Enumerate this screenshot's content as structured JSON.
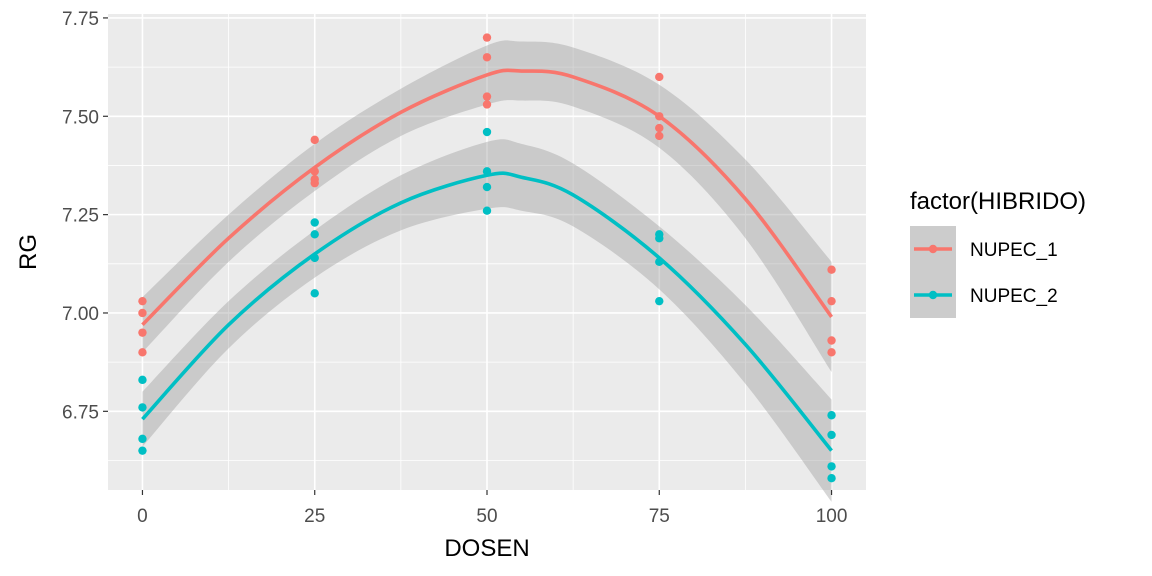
{
  "chart_data": {
    "type": "scatter",
    "xlabel": "DOSEN",
    "ylabel": "RG",
    "xlim": [
      -5,
      105
    ],
    "ylim": [
      6.55,
      7.76
    ],
    "xticks": [
      0,
      25,
      50,
      75,
      100
    ],
    "xtick_labels": [
      "0",
      "25",
      "50",
      "75",
      "100"
    ],
    "yticks": [
      6.75,
      7.0,
      7.25,
      7.5,
      7.75
    ],
    "ytick_labels": [
      "6.75",
      "7.00",
      "7.25",
      "7.50",
      "7.75"
    ],
    "grid": true,
    "legend": {
      "title": "factor(HIBRIDO)",
      "placement": "right"
    },
    "series": [
      {
        "name": "NUPEC_1",
        "color": "#F8766D",
        "points": [
          {
            "x": 0,
            "y": 7.03
          },
          {
            "x": 0,
            "y": 7.0
          },
          {
            "x": 0,
            "y": 6.95
          },
          {
            "x": 0,
            "y": 6.9
          },
          {
            "x": 25,
            "y": 7.44
          },
          {
            "x": 25,
            "y": 7.36
          },
          {
            "x": 25,
            "y": 7.34
          },
          {
            "x": 25,
            "y": 7.33
          },
          {
            "x": 50,
            "y": 7.7
          },
          {
            "x": 50,
            "y": 7.65
          },
          {
            "x": 50,
            "y": 7.55
          },
          {
            "x": 50,
            "y": 7.53
          },
          {
            "x": 75,
            "y": 7.6
          },
          {
            "x": 75,
            "y": 7.5
          },
          {
            "x": 75,
            "y": 7.47
          },
          {
            "x": 75,
            "y": 7.45
          },
          {
            "x": 100,
            "y": 7.11
          },
          {
            "x": 100,
            "y": 7.03
          },
          {
            "x": 100,
            "y": 6.93
          },
          {
            "x": 100,
            "y": 6.9
          }
        ],
        "fit": [
          {
            "x": 0,
            "y": 6.97
          },
          {
            "x": 12.5,
            "y": 7.19
          },
          {
            "x": 25,
            "y": 7.37
          },
          {
            "x": 37.5,
            "y": 7.51
          },
          {
            "x": 50,
            "y": 7.605
          },
          {
            "x": 55,
            "y": 7.615
          },
          {
            "x": 62.5,
            "y": 7.6
          },
          {
            "x": 75,
            "y": 7.5
          },
          {
            "x": 87.5,
            "y": 7.29
          },
          {
            "x": 100,
            "y": 6.99
          }
        ],
        "ci_halfwidth": [
          0.07,
          0.06,
          0.06,
          0.06,
          0.075,
          0.075,
          0.075,
          0.08,
          0.1,
          0.14
        ]
      },
      {
        "name": "NUPEC_2",
        "color": "#00BFC4",
        "points": [
          {
            "x": 0,
            "y": 6.83
          },
          {
            "x": 0,
            "y": 6.76
          },
          {
            "x": 0,
            "y": 6.68
          },
          {
            "x": 0,
            "y": 6.65
          },
          {
            "x": 25,
            "y": 7.23
          },
          {
            "x": 25,
            "y": 7.2
          },
          {
            "x": 25,
            "y": 7.14
          },
          {
            "x": 25,
            "y": 7.05
          },
          {
            "x": 50,
            "y": 7.46
          },
          {
            "x": 50,
            "y": 7.36
          },
          {
            "x": 50,
            "y": 7.32
          },
          {
            "x": 50,
            "y": 7.26
          },
          {
            "x": 75,
            "y": 7.2
          },
          {
            "x": 75,
            "y": 7.19
          },
          {
            "x": 75,
            "y": 7.13
          },
          {
            "x": 75,
            "y": 7.03
          },
          {
            "x": 100,
            "y": 6.74
          },
          {
            "x": 100,
            "y": 6.69
          },
          {
            "x": 100,
            "y": 6.61
          },
          {
            "x": 100,
            "y": 6.58
          }
        ],
        "fit": [
          {
            "x": 0,
            "y": 6.73
          },
          {
            "x": 12.5,
            "y": 6.97
          },
          {
            "x": 25,
            "y": 7.15
          },
          {
            "x": 37.5,
            "y": 7.28
          },
          {
            "x": 50,
            "y": 7.35
          },
          {
            "x": 55,
            "y": 7.345
          },
          {
            "x": 62.5,
            "y": 7.3
          },
          {
            "x": 75,
            "y": 7.14
          },
          {
            "x": 87.5,
            "y": 6.92
          },
          {
            "x": 100,
            "y": 6.65
          }
        ],
        "ci_halfwidth": [
          0.07,
          0.06,
          0.06,
          0.07,
          0.085,
          0.085,
          0.08,
          0.08,
          0.1,
          0.13
        ]
      }
    ]
  }
}
